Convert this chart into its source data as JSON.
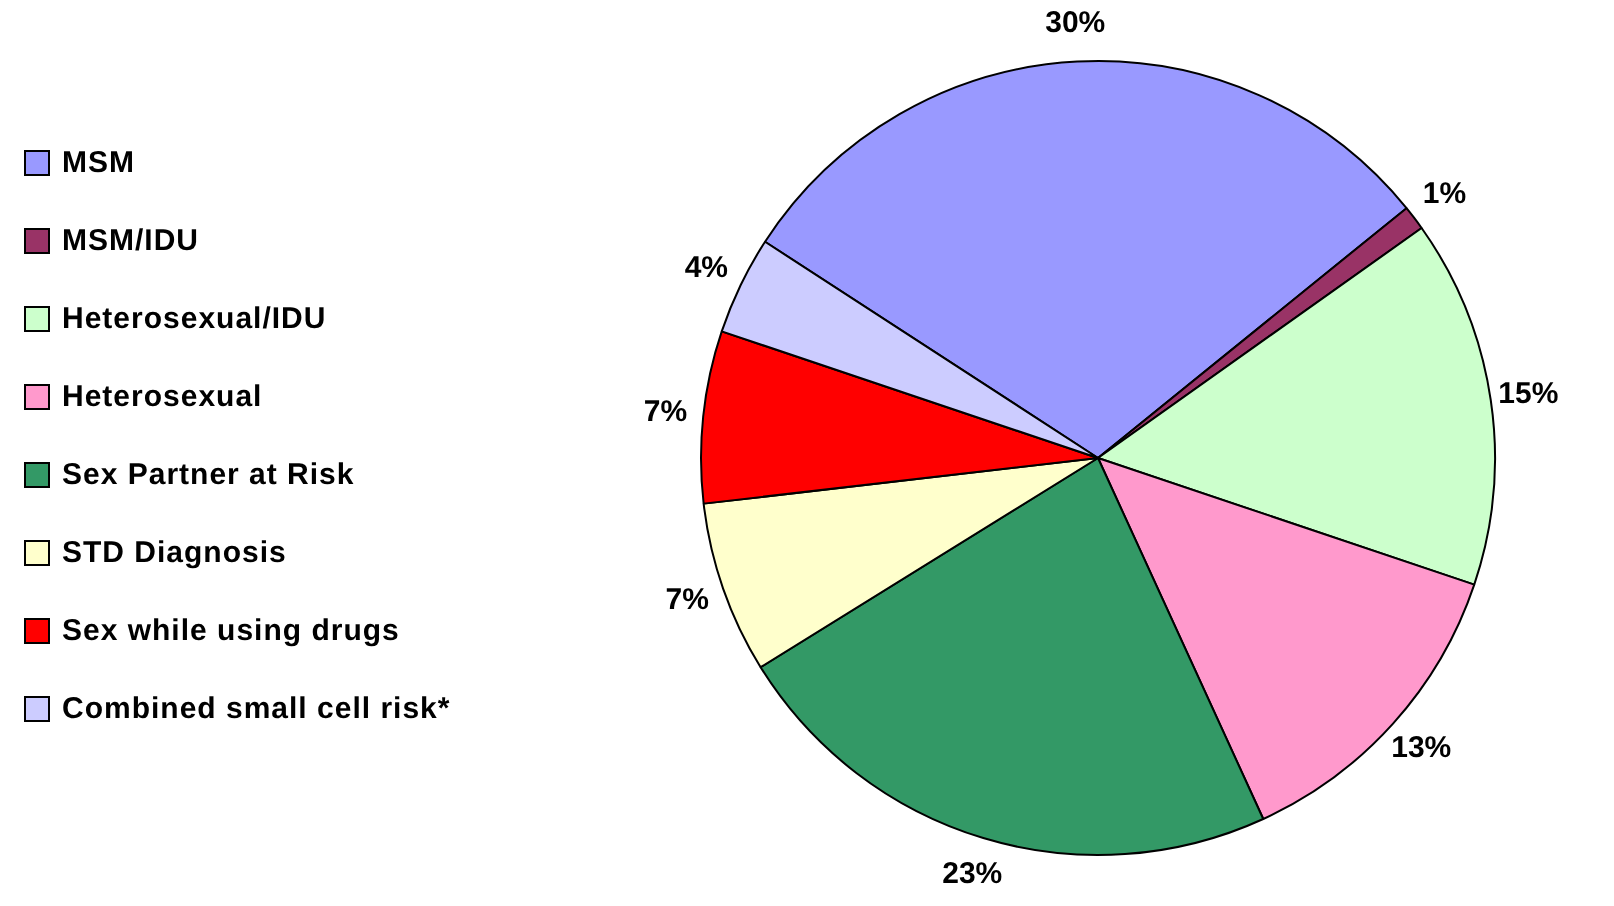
{
  "chart_data": {
    "type": "pie",
    "categories": [
      "MSM",
      "MSM/IDU",
      "Heterosexual/IDU",
      "Heterosexual",
      "Sex Partner at Risk",
      "STD Diagnosis",
      "Sex while using drugs",
      "Combined small cell risk*"
    ],
    "values": [
      30,
      1,
      15,
      13,
      23,
      7,
      7,
      4
    ],
    "colors": [
      "#9999ff",
      "#993366",
      "#ccffcc",
      "#ff99cc",
      "#339966",
      "#ffffcc",
      "#ff0000",
      "#ccccff"
    ],
    "value_labels": [
      "30%",
      "1%",
      "15%",
      "13%",
      "23%",
      "7%",
      "7%",
      "4%"
    ],
    "legend": "left"
  }
}
